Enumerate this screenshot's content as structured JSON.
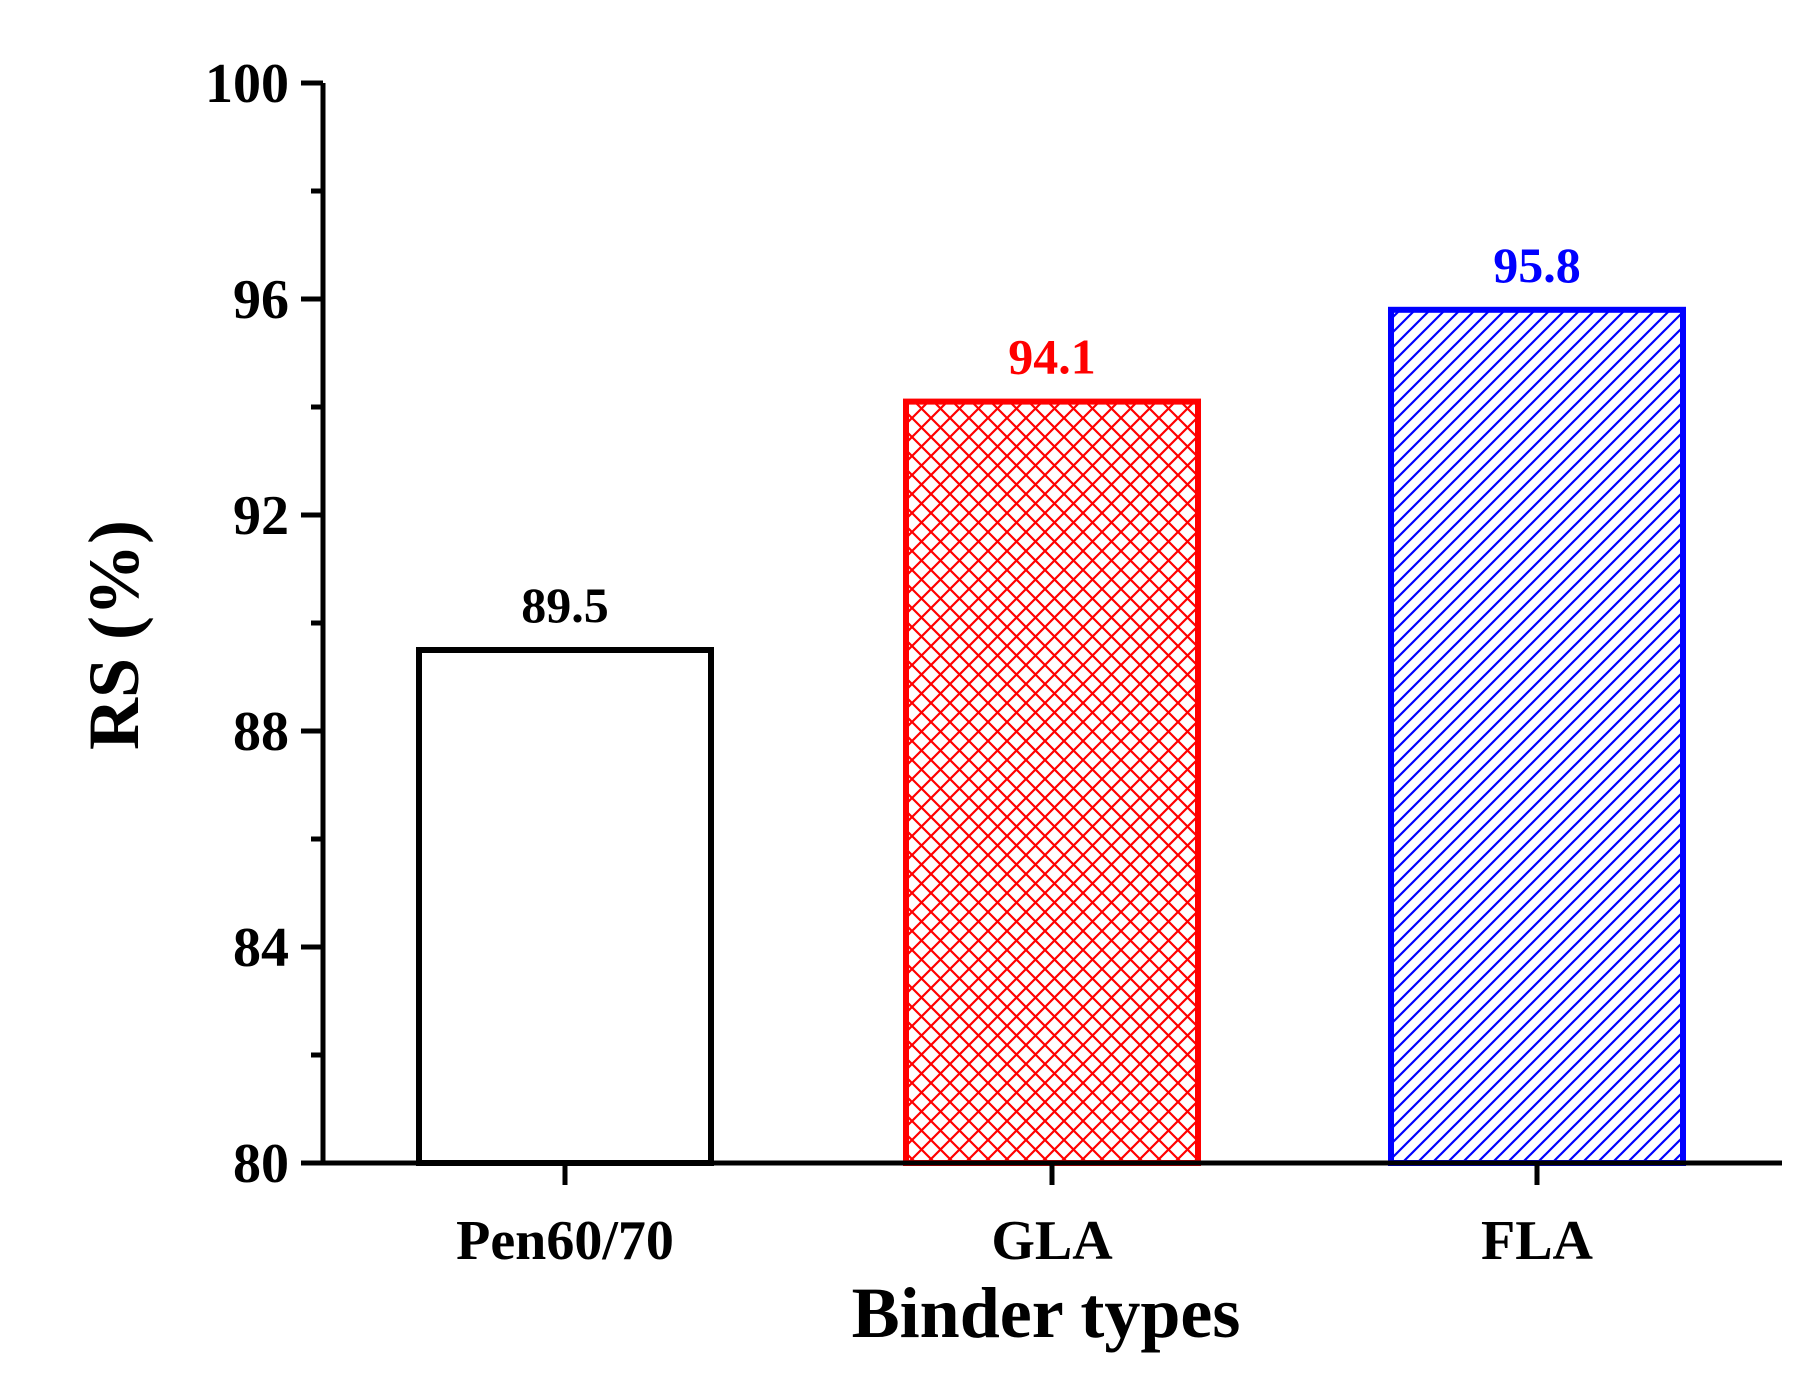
{
  "chart_data": {
    "type": "bar",
    "title": "",
    "xlabel": "Binder types",
    "ylabel": "RS (%)",
    "ylim": [
      80,
      100
    ],
    "y_major_ticks": [
      80,
      84,
      88,
      92,
      96,
      100
    ],
    "y_minor_ticks": [
      82,
      86,
      90,
      94,
      98
    ],
    "y_tick_labels": [
      "80",
      "84",
      "88",
      "92",
      "96",
      "100"
    ],
    "categories": [
      "Pen60/70",
      "GLA",
      "FLA"
    ],
    "values": [
      89.5,
      94.1,
      95.8
    ],
    "value_labels": [
      "89.5",
      "94.1",
      "95.8"
    ],
    "bar_colors": [
      "#000000",
      "#ff0000",
      "#0000ff"
    ],
    "bar_patterns": [
      "none",
      "crosshatch",
      "diagonal"
    ],
    "grid": false,
    "legend": "none"
  }
}
